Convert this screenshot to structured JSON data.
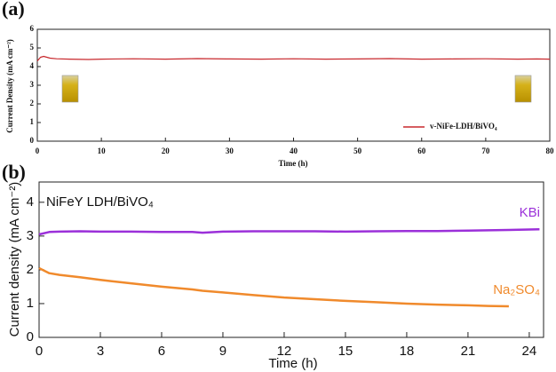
{
  "chart_data": [
    {
      "type": "line",
      "panel_label": "(a)",
      "x_label": "Time (h)",
      "y_label": "Current Density (mA cm⁻²)",
      "x": [
        0,
        0.5,
        1,
        1.5,
        2,
        3,
        5,
        8,
        10,
        15,
        20,
        25,
        30,
        35,
        40,
        45,
        50,
        55,
        60,
        65,
        70,
        75,
        78,
        80
      ],
      "series": [
        {
          "name": "v-NiFe-LDH/BiVO₄",
          "color": "#c8282d",
          "values": [
            4.3,
            4.5,
            4.55,
            4.5,
            4.45,
            4.42,
            4.4,
            4.38,
            4.4,
            4.42,
            4.4,
            4.43,
            4.41,
            4.4,
            4.42,
            4.4,
            4.41,
            4.43,
            4.4,
            4.41,
            4.42,
            4.4,
            4.41,
            4.4
          ]
        }
      ],
      "xlim": [
        0,
        80
      ],
      "xticks": [
        0,
        10,
        20,
        30,
        40,
        50,
        60,
        70,
        80
      ],
      "ylim": [
        0,
        6
      ],
      "yticks": [
        0,
        1,
        2,
        3,
        4,
        5,
        6
      ],
      "legend": "lower right"
    },
    {
      "type": "line",
      "panel_label": "(b)",
      "title": "NiFeY LDH/BiVO₄",
      "x_label": "Time (h)",
      "y_label": "Current density (mA cm⁻²)",
      "x": [
        0,
        0.5,
        1,
        2,
        3,
        4.5,
        6,
        7.5,
        8,
        9,
        10.5,
        12,
        13.5,
        15,
        16.5,
        18,
        19.5,
        21,
        22,
        23,
        24.5
      ],
      "series": [
        {
          "name": "KBi",
          "color": "#9b30d9",
          "values": [
            3.05,
            3.12,
            3.13,
            3.14,
            3.13,
            3.13,
            3.12,
            3.12,
            3.1,
            3.13,
            3.14,
            3.14,
            3.14,
            3.13,
            3.14,
            3.15,
            3.15,
            3.16,
            3.17,
            3.18,
            3.2
          ]
        },
        {
          "name": "Na₂SO₄",
          "color": "#f08a2c",
          "values": [
            2.05,
            1.9,
            1.85,
            1.78,
            1.7,
            1.6,
            1.5,
            1.42,
            1.38,
            1.33,
            1.25,
            1.18,
            1.13,
            1.08,
            1.04,
            1.0,
            0.97,
            0.95,
            0.93,
            0.92,
            null
          ]
        }
      ],
      "xlim": [
        0,
        24.7
      ],
      "xticks": [
        0,
        3,
        6,
        9,
        12,
        15,
        18,
        21,
        24
      ],
      "ylim": [
        0,
        4.6
      ],
      "yticks": [
        0,
        1,
        2,
        3,
        4
      ]
    }
  ]
}
